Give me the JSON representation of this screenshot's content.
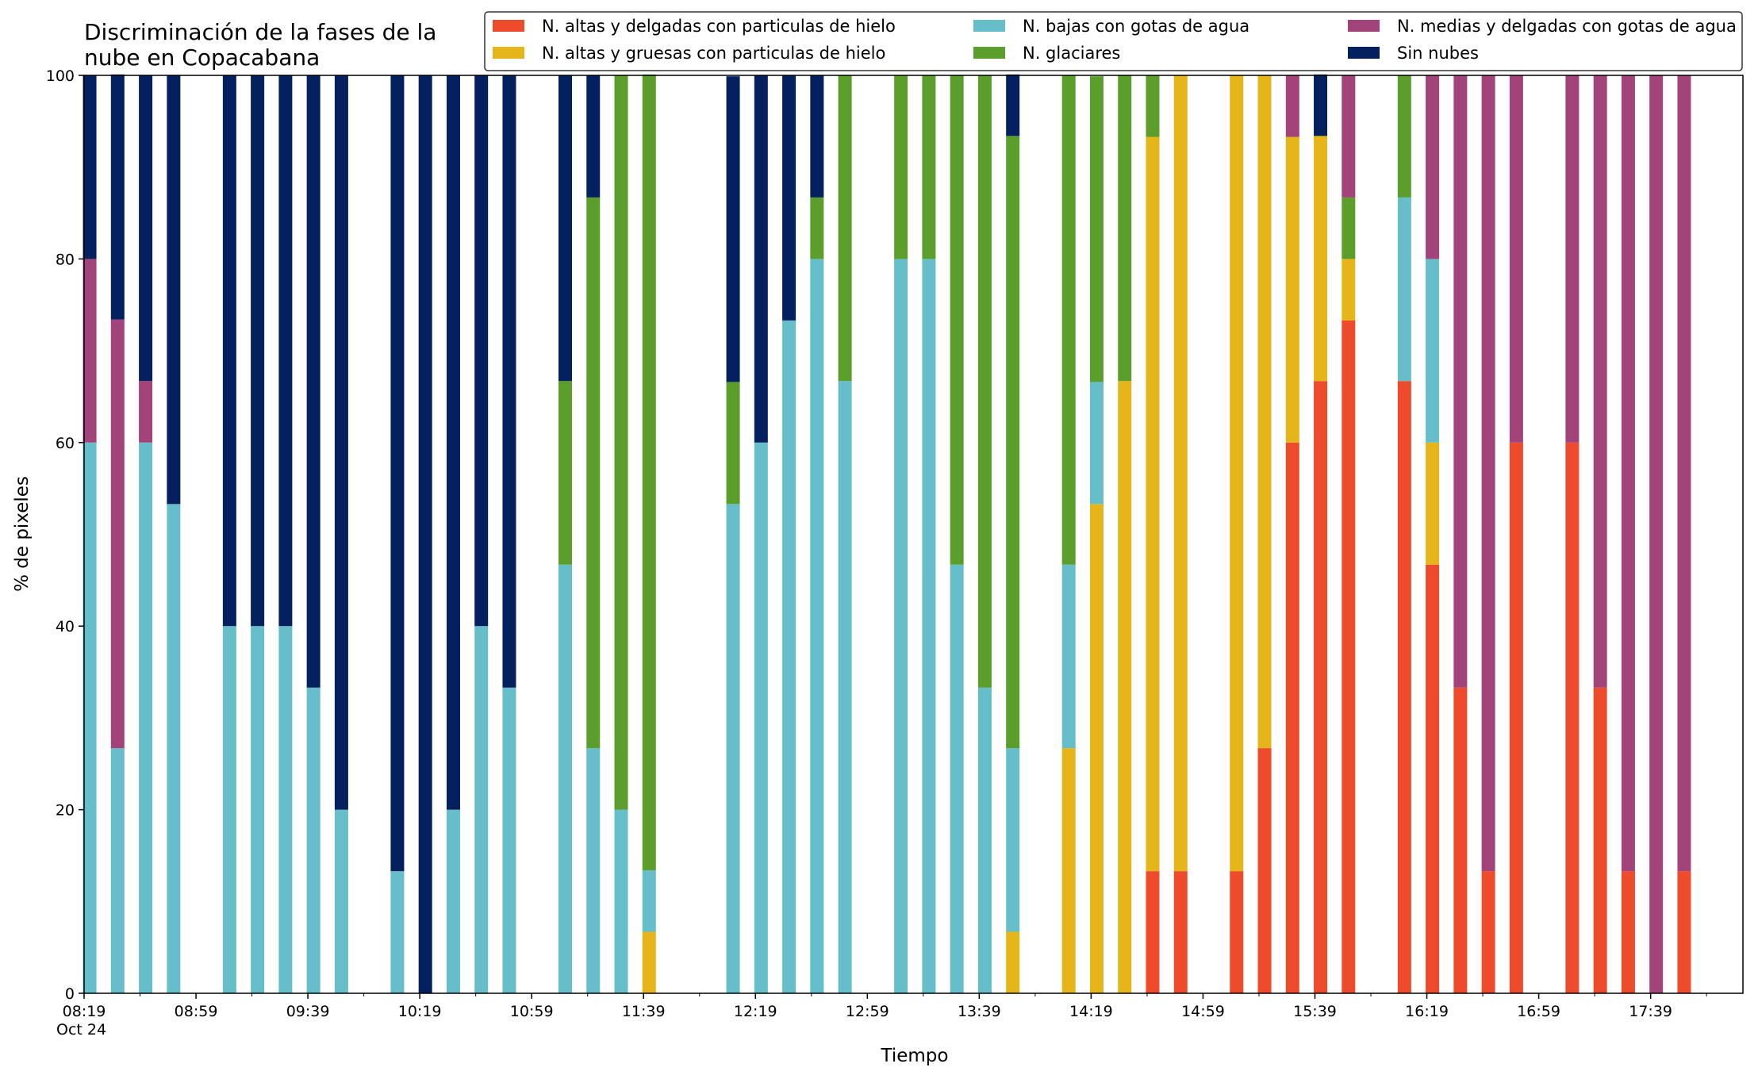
{
  "chart_data": {
    "type": "bar",
    "stacked": true,
    "title_lines": [
      "Discriminación de la fases de la",
      "nube en Copacabana"
    ],
    "xlabel": "Tiempo",
    "ylabel": "% de pixeles",
    "ylim": [
      0,
      100
    ],
    "yticks": [
      0,
      20,
      40,
      60,
      80,
      100
    ],
    "grid": false,
    "legend_position": "top-right",
    "x_start_minutes": 499,
    "x_end_minutes": 1092,
    "slot_minutes": 10,
    "x_tick_minor_minutes": 10,
    "xticks": [
      {
        "minutes": 499,
        "label": "08:19",
        "sublabel": "Oct 24"
      },
      {
        "minutes": 539,
        "label": "08:59",
        "sublabel": ""
      },
      {
        "minutes": 579,
        "label": "09:39",
        "sublabel": ""
      },
      {
        "minutes": 619,
        "label": "10:19",
        "sublabel": ""
      },
      {
        "minutes": 659,
        "label": "10:59",
        "sublabel": ""
      },
      {
        "minutes": 699,
        "label": "11:39",
        "sublabel": ""
      },
      {
        "minutes": 739,
        "label": "12:19",
        "sublabel": ""
      },
      {
        "minutes": 779,
        "label": "12:59",
        "sublabel": ""
      },
      {
        "minutes": 819,
        "label": "13:39",
        "sublabel": ""
      },
      {
        "minutes": 859,
        "label": "14:19",
        "sublabel": ""
      },
      {
        "minutes": 899,
        "label": "14:59",
        "sublabel": ""
      },
      {
        "minutes": 939,
        "label": "15:39",
        "sublabel": ""
      },
      {
        "minutes": 979,
        "label": "16:19",
        "sublabel": ""
      },
      {
        "minutes": 1019,
        "label": "16:59",
        "sublabel": ""
      },
      {
        "minutes": 1059,
        "label": "17:39",
        "sublabel": ""
      }
    ],
    "series": [
      {
        "key": "red",
        "name": "N. altas y delgadas con particulas de hielo",
        "color": "#ee4a2c"
      },
      {
        "key": "yellow",
        "name": "N. altas y gruesas con particulas de hielo",
        "color": "#e5b519"
      },
      {
        "key": "cyan",
        "name": "N. bajas con gotas de agua",
        "color": "#65bec9"
      },
      {
        "key": "green",
        "name": "N. glaciares",
        "color": "#5b9e2b"
      },
      {
        "key": "purple",
        "name": "N. medias y delgadas con gotas de agua",
        "color": "#a2437a"
      },
      {
        "key": "navy",
        "name": "Sin nubes",
        "color": "#05205e"
      }
    ],
    "stack_order": [
      "red",
      "yellow",
      "cyan",
      "green",
      "purple",
      "navy"
    ],
    "bars": [
      {
        "slot": 0,
        "cyan": 60,
        "purple": 20,
        "navy": 20
      },
      {
        "slot": 1,
        "cyan": 26.7,
        "purple": 46.7,
        "navy": 26.7
      },
      {
        "slot": 2,
        "cyan": 60,
        "purple": 6.7,
        "navy": 33.3
      },
      {
        "slot": 3,
        "cyan": 53.3,
        "navy": 46.7
      },
      {
        "slot": 5,
        "cyan": 40,
        "navy": 60
      },
      {
        "slot": 6,
        "cyan": 40,
        "navy": 60
      },
      {
        "slot": 7,
        "cyan": 40,
        "navy": 60
      },
      {
        "slot": 8,
        "cyan": 33.3,
        "navy": 66.7
      },
      {
        "slot": 9,
        "cyan": 20,
        "navy": 80
      },
      {
        "slot": 11,
        "cyan": 13.3,
        "navy": 86.7
      },
      {
        "slot": 12,
        "navy": 100
      },
      {
        "slot": 13,
        "cyan": 20,
        "navy": 80
      },
      {
        "slot": 14,
        "cyan": 40,
        "navy": 60
      },
      {
        "slot": 15,
        "cyan": 33.3,
        "navy": 66.7
      },
      {
        "slot": 17,
        "cyan": 46.7,
        "green": 20,
        "navy": 33.3
      },
      {
        "slot": 18,
        "cyan": 26.7,
        "green": 60,
        "navy": 13.3
      },
      {
        "slot": 19,
        "cyan": 20,
        "green": 80
      },
      {
        "slot": 20,
        "yellow": 6.7,
        "cyan": 6.7,
        "green": 86.7
      },
      {
        "slot": 23,
        "cyan": 53.3,
        "green": 13.3,
        "navy": 33.3
      },
      {
        "slot": 24,
        "cyan": 60,
        "navy": 40
      },
      {
        "slot": 25,
        "cyan": 73.3,
        "navy": 26.7
      },
      {
        "slot": 26,
        "cyan": 80,
        "green": 6.7,
        "navy": 13.3
      },
      {
        "slot": 27,
        "cyan": 66.7,
        "green": 33.3
      },
      {
        "slot": 29,
        "cyan": 80,
        "green": 20
      },
      {
        "slot": 30,
        "cyan": 80,
        "green": 20
      },
      {
        "slot": 31,
        "cyan": 46.7,
        "green": 53.3
      },
      {
        "slot": 32,
        "cyan": 33.3,
        "green": 66.7
      },
      {
        "slot": 33,
        "yellow": 6.7,
        "cyan": 20,
        "green": 66.7,
        "navy": 6.7
      },
      {
        "slot": 35,
        "yellow": 26.7,
        "cyan": 20,
        "green": 53.3
      },
      {
        "slot": 36,
        "yellow": 53.3,
        "cyan": 13.3,
        "green": 33.3
      },
      {
        "slot": 37,
        "yellow": 66.7,
        "green": 33.3
      },
      {
        "slot": 38,
        "red": 13.3,
        "yellow": 80,
        "green": 6.7
      },
      {
        "slot": 39,
        "red": 13.3,
        "yellow": 86.7
      },
      {
        "slot": 41,
        "red": 13.3,
        "yellow": 86.7
      },
      {
        "slot": 42,
        "red": 26.7,
        "yellow": 73.3
      },
      {
        "slot": 43,
        "red": 60,
        "yellow": 33.3,
        "purple": 6.7
      },
      {
        "slot": 44,
        "red": 66.7,
        "yellow": 26.7,
        "navy": 6.7
      },
      {
        "slot": 45,
        "red": 73.3,
        "yellow": 6.7,
        "green": 6.7,
        "purple": 13.3
      },
      {
        "slot": 47,
        "red": 66.7,
        "cyan": 20,
        "green": 13.3
      },
      {
        "slot": 48,
        "red": 46.7,
        "yellow": 13.3,
        "cyan": 20,
        "purple": 20
      },
      {
        "slot": 49,
        "red": 33.3,
        "purple": 66.7
      },
      {
        "slot": 50,
        "red": 13.3,
        "purple": 86.7
      },
      {
        "slot": 51,
        "red": 60,
        "purple": 40
      },
      {
        "slot": 53,
        "red": 60,
        "purple": 40
      },
      {
        "slot": 54,
        "red": 33.3,
        "purple": 66.7
      },
      {
        "slot": 55,
        "red": 13.3,
        "purple": 86.7
      },
      {
        "slot": 56,
        "purple": 100
      },
      {
        "slot": 57,
        "red": 13.3,
        "purple": 86.7
      }
    ]
  }
}
